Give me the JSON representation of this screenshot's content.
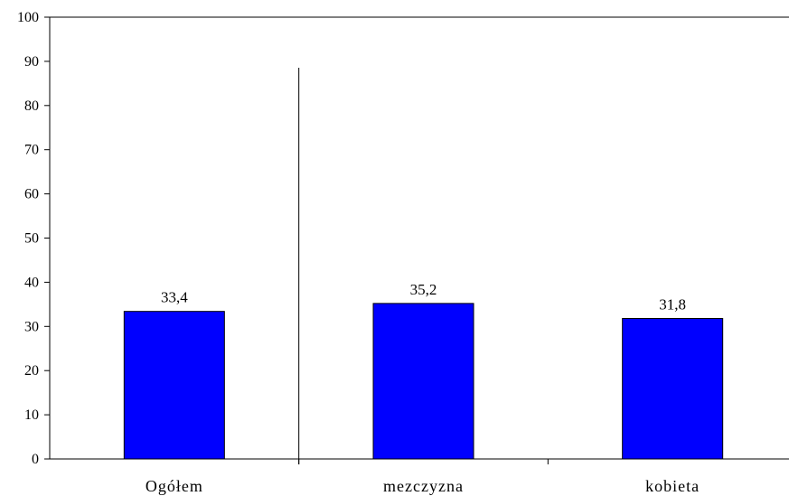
{
  "chart_data": {
    "type": "bar",
    "categories": [
      "Ogółem",
      "mezczyzna",
      "kobieta"
    ],
    "values": [
      33.4,
      35.2,
      31.8
    ],
    "value_labels": [
      "33,4",
      "35,2",
      "31,8"
    ],
    "title": "",
    "xlabel": "",
    "ylabel": "",
    "ylim": [
      0,
      100
    ],
    "yticks": [
      0,
      10,
      20,
      30,
      40,
      50,
      60,
      70,
      80,
      90,
      100
    ],
    "grid": false,
    "legend": "none",
    "bar_color": "#0000FF",
    "divider_after_category": 0
  }
}
